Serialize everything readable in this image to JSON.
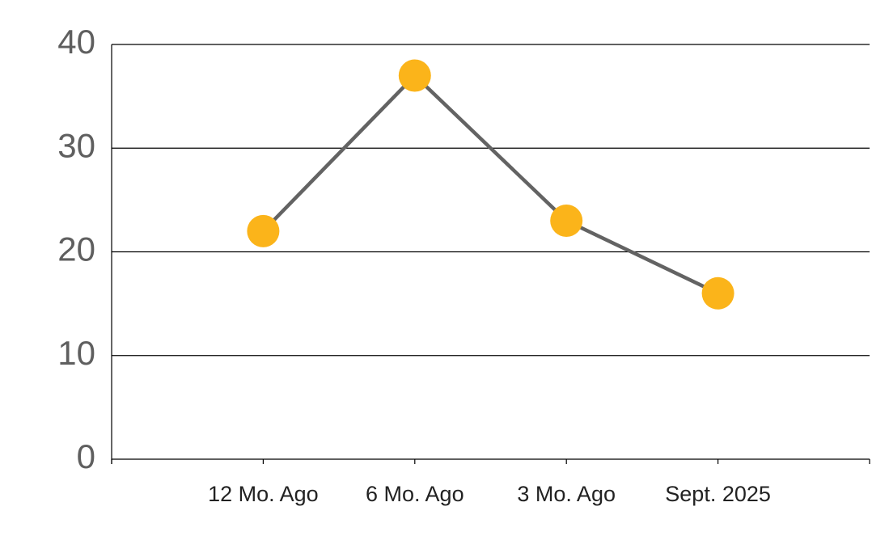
{
  "chart_data": {
    "type": "line",
    "categories": [
      "12 Mo. Ago",
      "6 Mo. Ago",
      "3 Mo. Ago",
      "Sept. 2025"
    ],
    "values": [
      22,
      37,
      23,
      16
    ],
    "color": "#636363",
    "marker_color": "#fbb41a",
    "ylim": [
      0,
      40
    ],
    "yticks": [
      0,
      10,
      20,
      30,
      40
    ],
    "grid": true
  }
}
